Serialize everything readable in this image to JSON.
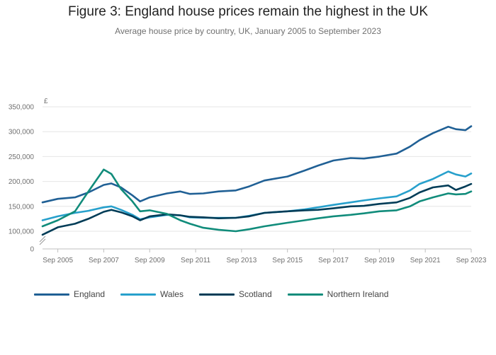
{
  "chart_data": {
    "type": "line",
    "title": "Figure 3: England house prices remain the highest in the UK",
    "subtitle": "Average house price by country, UK, January 2005 to September 2023",
    "ylabel": "£",
    "ylim": [
      0,
      350000
    ],
    "y_axis_break": true,
    "yticks": [
      0,
      100000,
      150000,
      200000,
      250000,
      300000,
      350000
    ],
    "ytick_labels": [
      "0",
      "100,000",
      "150,000",
      "200,000",
      "250,000",
      "300,000",
      "350,000"
    ],
    "xrange": [
      "2005-01",
      "2023-09"
    ],
    "xticks": [
      "Sep 2005",
      "Sep 2007",
      "Sep 2009",
      "Sep 2011",
      "Sep 2013",
      "Sep 2015",
      "Sep 2017",
      "Sep 2019",
      "Sep 2021",
      "Sep 2023"
    ],
    "grid": true,
    "legend_position": "bottom",
    "series": [
      {
        "name": "England",
        "color": "#206095",
        "points": [
          [
            "2005-01",
            158000
          ],
          [
            "2005-09",
            165000
          ],
          [
            "2006-06",
            168000
          ],
          [
            "2007-01",
            178000
          ],
          [
            "2007-09",
            193000
          ],
          [
            "2008-01",
            196000
          ],
          [
            "2008-06",
            188000
          ],
          [
            "2008-12",
            172000
          ],
          [
            "2009-04",
            160000
          ],
          [
            "2009-09",
            168000
          ],
          [
            "2010-06",
            176000
          ],
          [
            "2011-01",
            180000
          ],
          [
            "2011-06",
            175000
          ],
          [
            "2012-01",
            176000
          ],
          [
            "2012-09",
            180000
          ],
          [
            "2013-06",
            182000
          ],
          [
            "2014-01",
            190000
          ],
          [
            "2014-09",
            202000
          ],
          [
            "2015-09",
            210000
          ],
          [
            "2016-06",
            222000
          ],
          [
            "2017-01",
            232000
          ],
          [
            "2017-09",
            242000
          ],
          [
            "2018-06",
            247000
          ],
          [
            "2019-01",
            246000
          ],
          [
            "2019-09",
            250000
          ],
          [
            "2020-06",
            256000
          ],
          [
            "2021-01",
            270000
          ],
          [
            "2021-06",
            283000
          ],
          [
            "2022-01",
            297000
          ],
          [
            "2022-09",
            310000
          ],
          [
            "2023-01",
            305000
          ],
          [
            "2023-06",
            303000
          ],
          [
            "2023-09",
            311000
          ]
        ]
      },
      {
        "name": "Wales",
        "color": "#27a0cc",
        "points": [
          [
            "2005-01",
            122000
          ],
          [
            "2005-09",
            130000
          ],
          [
            "2006-06",
            137000
          ],
          [
            "2007-01",
            141000
          ],
          [
            "2007-09",
            148000
          ],
          [
            "2008-01",
            150000
          ],
          [
            "2008-06",
            143000
          ],
          [
            "2008-12",
            133000
          ],
          [
            "2009-04",
            124000
          ],
          [
            "2009-09",
            128000
          ],
          [
            "2010-06",
            133000
          ],
          [
            "2011-01",
            132000
          ],
          [
            "2011-06",
            128000
          ],
          [
            "2012-01",
            127000
          ],
          [
            "2012-09",
            127000
          ],
          [
            "2013-06",
            127000
          ],
          [
            "2014-01",
            131000
          ],
          [
            "2014-09",
            137000
          ],
          [
            "2015-09",
            140000
          ],
          [
            "2016-06",
            144000
          ],
          [
            "2017-01",
            148000
          ],
          [
            "2017-09",
            153000
          ],
          [
            "2018-06",
            158000
          ],
          [
            "2019-01",
            162000
          ],
          [
            "2019-09",
            166000
          ],
          [
            "2020-06",
            170000
          ],
          [
            "2021-01",
            182000
          ],
          [
            "2021-06",
            195000
          ],
          [
            "2022-01",
            205000
          ],
          [
            "2022-09",
            220000
          ],
          [
            "2023-01",
            214000
          ],
          [
            "2023-06",
            210000
          ],
          [
            "2023-09",
            216000
          ]
        ]
      },
      {
        "name": "Scotland",
        "color": "#003c57",
        "points": [
          [
            "2005-01",
            93000
          ],
          [
            "2005-09",
            108000
          ],
          [
            "2006-06",
            115000
          ],
          [
            "2007-01",
            125000
          ],
          [
            "2007-09",
            139000
          ],
          [
            "2008-01",
            143000
          ],
          [
            "2008-06",
            138000
          ],
          [
            "2008-12",
            130000
          ],
          [
            "2009-04",
            122000
          ],
          [
            "2009-09",
            130000
          ],
          [
            "2010-06",
            134000
          ],
          [
            "2011-01",
            132000
          ],
          [
            "2011-06",
            129000
          ],
          [
            "2012-01",
            128000
          ],
          [
            "2012-09",
            126000
          ],
          [
            "2013-06",
            127000
          ],
          [
            "2014-01",
            130000
          ],
          [
            "2014-09",
            137000
          ],
          [
            "2015-09",
            140000
          ],
          [
            "2016-06",
            142000
          ],
          [
            "2017-01",
            143000
          ],
          [
            "2017-09",
            146000
          ],
          [
            "2018-06",
            150000
          ],
          [
            "2019-01",
            151000
          ],
          [
            "2019-09",
            155000
          ],
          [
            "2020-06",
            158000
          ],
          [
            "2021-01",
            167000
          ],
          [
            "2021-06",
            178000
          ],
          [
            "2022-01",
            188000
          ],
          [
            "2022-09",
            192000
          ],
          [
            "2023-01",
            183000
          ],
          [
            "2023-06",
            190000
          ],
          [
            "2023-09",
            195000
          ]
        ]
      },
      {
        "name": "Northern Ireland",
        "color": "#118c7b",
        "points": [
          [
            "2005-01",
            110000
          ],
          [
            "2005-09",
            122000
          ],
          [
            "2006-06",
            140000
          ],
          [
            "2007-01",
            180000
          ],
          [
            "2007-09",
            224000
          ],
          [
            "2008-01",
            215000
          ],
          [
            "2008-06",
            185000
          ],
          [
            "2008-12",
            160000
          ],
          [
            "2009-04",
            140000
          ],
          [
            "2009-09",
            142000
          ],
          [
            "2010-06",
            135000
          ],
          [
            "2011-01",
            122000
          ],
          [
            "2011-06",
            115000
          ],
          [
            "2012-01",
            107000
          ],
          [
            "2012-09",
            103000
          ],
          [
            "2013-06",
            100000
          ],
          [
            "2014-01",
            104000
          ],
          [
            "2014-09",
            110000
          ],
          [
            "2015-09",
            117000
          ],
          [
            "2016-06",
            122000
          ],
          [
            "2017-01",
            126000
          ],
          [
            "2017-09",
            130000
          ],
          [
            "2018-06",
            133000
          ],
          [
            "2019-01",
            136000
          ],
          [
            "2019-09",
            140000
          ],
          [
            "2020-06",
            142000
          ],
          [
            "2021-01",
            150000
          ],
          [
            "2021-06",
            160000
          ],
          [
            "2022-01",
            168000
          ],
          [
            "2022-09",
            176000
          ],
          [
            "2023-01",
            174000
          ],
          [
            "2023-06",
            175000
          ],
          [
            "2023-09",
            180000
          ]
        ]
      }
    ]
  }
}
